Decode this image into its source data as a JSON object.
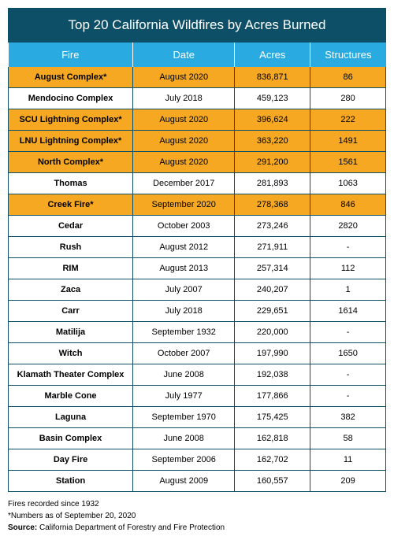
{
  "title": "Top 20 California Wildfires by Acres Burned",
  "colors": {
    "title_bg": "#0d4f66",
    "title_fg": "#ffffff",
    "header_bg": "#29abe2",
    "header_fg": "#ffffff",
    "highlight_bg": "#f7a823",
    "highlight_fg": "#000000",
    "row_bg": "#ffffff",
    "row_fg": "#000000",
    "border": "#0d4f66"
  },
  "columns": [
    {
      "key": "fire",
      "label": "Fire",
      "width": "33%"
    },
    {
      "key": "date",
      "label": "Date",
      "width": "27%"
    },
    {
      "key": "acres",
      "label": "Acres",
      "width": "20%"
    },
    {
      "key": "structures",
      "label": "Structures",
      "width": "20%"
    }
  ],
  "rows": [
    {
      "fire": "August Complex*",
      "date": "August 2020",
      "acres": "836,871",
      "structures": "86",
      "highlight": true
    },
    {
      "fire": "Mendocino Complex",
      "date": "July 2018",
      "acres": "459,123",
      "structures": "280",
      "highlight": false
    },
    {
      "fire": "SCU Lightning Complex*",
      "date": "August 2020",
      "acres": "396,624",
      "structures": "222",
      "highlight": true
    },
    {
      "fire": "LNU Lightning Complex*",
      "date": "August 2020",
      "acres": "363,220",
      "structures": "1491",
      "highlight": true
    },
    {
      "fire": "North Complex*",
      "date": "August 2020",
      "acres": "291,200",
      "structures": "1561",
      "highlight": true
    },
    {
      "fire": "Thomas",
      "date": "December 2017",
      "acres": "281,893",
      "structures": "1063",
      "highlight": false
    },
    {
      "fire": "Creek Fire*",
      "date": "September 2020",
      "acres": "278,368",
      "structures": "846",
      "highlight": true
    },
    {
      "fire": "Cedar",
      "date": "October 2003",
      "acres": "273,246",
      "structures": "2820",
      "highlight": false
    },
    {
      "fire": "Rush",
      "date": "August 2012",
      "acres": "271,911",
      "structures": "-",
      "highlight": false
    },
    {
      "fire": "RIM",
      "date": "August 2013",
      "acres": "257,314",
      "structures": "112",
      "highlight": false
    },
    {
      "fire": "Zaca",
      "date": "July 2007",
      "acres": "240,207",
      "structures": "1",
      "highlight": false
    },
    {
      "fire": "Carr",
      "date": "July 2018",
      "acres": "229,651",
      "structures": "1614",
      "highlight": false
    },
    {
      "fire": "Matilija",
      "date": "September 1932",
      "acres": "220,000",
      "structures": "-",
      "highlight": false
    },
    {
      "fire": "Witch",
      "date": "October 2007",
      "acres": "197,990",
      "structures": "1650",
      "highlight": false
    },
    {
      "fire": "Klamath Theater Complex",
      "date": "June 2008",
      "acres": "192,038",
      "structures": "-",
      "highlight": false
    },
    {
      "fire": "Marble Cone",
      "date": "July 1977",
      "acres": "177,866",
      "structures": "-",
      "highlight": false
    },
    {
      "fire": "Laguna",
      "date": "September 1970",
      "acres": "175,425",
      "structures": "382",
      "highlight": false
    },
    {
      "fire": "Basin Complex",
      "date": "June 2008",
      "acres": "162,818",
      "structures": "58",
      "highlight": false
    },
    {
      "fire": "Day Fire",
      "date": "September 2006",
      "acres": "162,702",
      "structures": "11",
      "highlight": false
    },
    {
      "fire": "Station",
      "date": "August 2009",
      "acres": "160,557",
      "structures": "209",
      "highlight": false
    }
  ],
  "footnotes": {
    "line1": "Fires recorded since 1932",
    "line2": "*Numbers as of September 20, 2020",
    "source_label": "Source:",
    "source_text": " California Department of Forestry and Fire Protection"
  }
}
